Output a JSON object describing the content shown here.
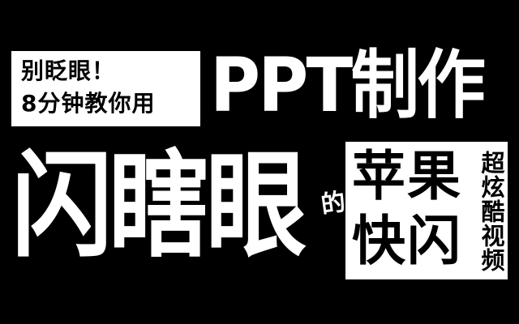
{
  "top_left_box": {
    "line1": "别眨眼！",
    "line2": "8分钟教你用"
  },
  "headline": "PPT制作",
  "big_title": "闪瞎眼",
  "connector": "的",
  "right_box": {
    "row1": "苹果",
    "row2": "快闪",
    "vertical": "超炫酷视频"
  },
  "colors": {
    "background": "#000000",
    "foreground": "#ffffff",
    "box": "#ffffff",
    "box_text": "#000000"
  }
}
